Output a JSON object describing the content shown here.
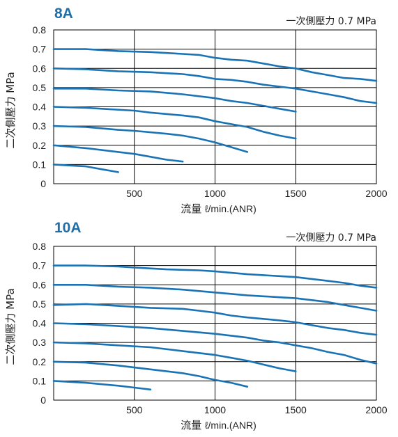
{
  "chart_data": [
    {
      "type": "line",
      "title": "8A",
      "annotation": "一次側壓力 0.7 MPa",
      "ylabel": "二次側壓力  MPa",
      "xlabel_prefix": "流量",
      "xlabel_unit": "ℓ/min.(ANR)",
      "xlim": [
        0,
        2000
      ],
      "ylim": [
        0,
        0.8
      ],
      "x_ticks": [
        "500",
        "1000",
        "1500",
        "2000"
      ],
      "y_ticks": [
        "0",
        "0.1",
        "0.2",
        "0.3",
        "0.4",
        "0.5",
        "0.6",
        "0.7",
        "0.8"
      ],
      "x_grid": [
        500,
        1000,
        1500
      ],
      "y_grid": [
        0.1,
        0.2,
        0.3,
        0.4,
        0.5,
        0.6,
        0.7
      ],
      "line_color": "#1a73b5",
      "series": [
        {
          "points": [
            [
              0,
              0.7
            ],
            [
              200,
              0.7
            ],
            [
              400,
              0.69
            ],
            [
              600,
              0.685
            ],
            [
              800,
              0.675
            ],
            [
              900,
              0.67
            ],
            [
              1000,
              0.655
            ],
            [
              1100,
              0.645
            ],
            [
              1200,
              0.64
            ],
            [
              1300,
              0.625
            ],
            [
              1400,
              0.61
            ],
            [
              1500,
              0.6
            ],
            [
              1600,
              0.58
            ],
            [
              1700,
              0.565
            ],
            [
              1800,
              0.55
            ],
            [
              1900,
              0.545
            ],
            [
              2000,
              0.535
            ]
          ]
        },
        {
          "points": [
            [
              0,
              0.6
            ],
            [
              200,
              0.595
            ],
            [
              400,
              0.585
            ],
            [
              600,
              0.58
            ],
            [
              700,
              0.575
            ],
            [
              800,
              0.57
            ],
            [
              900,
              0.56
            ],
            [
              1000,
              0.545
            ],
            [
              1100,
              0.54
            ],
            [
              1200,
              0.53
            ],
            [
              1300,
              0.515
            ],
            [
              1400,
              0.505
            ],
            [
              1500,
              0.495
            ],
            [
              1600,
              0.48
            ],
            [
              1700,
              0.465
            ],
            [
              1800,
              0.45
            ],
            [
              1900,
              0.43
            ],
            [
              2000,
              0.42
            ]
          ]
        },
        {
          "points": [
            [
              0,
              0.495
            ],
            [
              200,
              0.495
            ],
            [
              400,
              0.485
            ],
            [
              600,
              0.48
            ],
            [
              800,
              0.465
            ],
            [
              1000,
              0.445
            ],
            [
              1100,
              0.43
            ],
            [
              1200,
              0.42
            ],
            [
              1300,
              0.405
            ],
            [
              1400,
              0.39
            ],
            [
              1500,
              0.375
            ]
          ]
        },
        {
          "points": [
            [
              0,
              0.4
            ],
            [
              200,
              0.395
            ],
            [
              300,
              0.39
            ],
            [
              500,
              0.38
            ],
            [
              600,
              0.37
            ],
            [
              800,
              0.355
            ],
            [
              900,
              0.345
            ],
            [
              1000,
              0.325
            ],
            [
              1100,
              0.31
            ],
            [
              1200,
              0.295
            ],
            [
              1300,
              0.27
            ],
            [
              1400,
              0.25
            ],
            [
              1500,
              0.235
            ]
          ]
        },
        {
          "points": [
            [
              0,
              0.3
            ],
            [
              200,
              0.295
            ],
            [
              400,
              0.28
            ],
            [
              500,
              0.275
            ],
            [
              700,
              0.26
            ],
            [
              800,
              0.25
            ],
            [
              900,
              0.235
            ],
            [
              1000,
              0.215
            ],
            [
              1100,
              0.19
            ],
            [
              1200,
              0.165
            ]
          ]
        },
        {
          "points": [
            [
              0,
              0.2
            ],
            [
              200,
              0.185
            ],
            [
              400,
              0.165
            ],
            [
              500,
              0.155
            ],
            [
              600,
              0.14
            ],
            [
              700,
              0.125
            ],
            [
              800,
              0.115
            ]
          ]
        },
        {
          "points": [
            [
              0,
              0.1
            ],
            [
              100,
              0.095
            ],
            [
              200,
              0.09
            ],
            [
              300,
              0.075
            ],
            [
              400,
              0.06
            ]
          ]
        }
      ]
    },
    {
      "type": "line",
      "title": "10A",
      "annotation": "一次側壓力 0.7 MPa",
      "ylabel": "二次側壓力  MPa",
      "xlabel_prefix": "流量",
      "xlabel_unit": "ℓ/min.(ANR)",
      "xlim": [
        0,
        2000
      ],
      "ylim": [
        0,
        0.8
      ],
      "x_ticks": [
        "500",
        "1000",
        "1500",
        "2000"
      ],
      "y_ticks": [
        "0",
        "0.1",
        "0.2",
        "0.3",
        "0.4",
        "0.5",
        "0.6",
        "0.7",
        "0.8"
      ],
      "x_grid": [
        500,
        1000,
        1500
      ],
      "y_grid": [
        0.1,
        0.2,
        0.3,
        0.4,
        0.5,
        0.6,
        0.7
      ],
      "line_color": "#1a73b5",
      "series": [
        {
          "points": [
            [
              0,
              0.7
            ],
            [
              200,
              0.7
            ],
            [
              400,
              0.695
            ],
            [
              500,
              0.69
            ],
            [
              700,
              0.68
            ],
            [
              900,
              0.675
            ],
            [
              1000,
              0.67
            ],
            [
              1200,
              0.655
            ],
            [
              1400,
              0.645
            ],
            [
              1500,
              0.64
            ],
            [
              1700,
              0.62
            ],
            [
              1800,
              0.61
            ],
            [
              1900,
              0.595
            ],
            [
              2000,
              0.585
            ]
          ]
        },
        {
          "points": [
            [
              0,
              0.6
            ],
            [
              200,
              0.6
            ],
            [
              400,
              0.59
            ],
            [
              600,
              0.585
            ],
            [
              800,
              0.575
            ],
            [
              1000,
              0.56
            ],
            [
              1200,
              0.545
            ],
            [
              1400,
              0.535
            ],
            [
              1500,
              0.53
            ],
            [
              1700,
              0.51
            ],
            [
              1800,
              0.495
            ],
            [
              1900,
              0.48
            ],
            [
              2000,
              0.465
            ]
          ]
        },
        {
          "points": [
            [
              0,
              0.495
            ],
            [
              200,
              0.5
            ],
            [
              400,
              0.49
            ],
            [
              600,
              0.48
            ],
            [
              800,
              0.475
            ],
            [
              900,
              0.465
            ],
            [
              1000,
              0.455
            ],
            [
              1100,
              0.44
            ],
            [
              1200,
              0.43
            ],
            [
              1400,
              0.415
            ],
            [
              1500,
              0.405
            ],
            [
              1600,
              0.39
            ],
            [
              1700,
              0.375
            ],
            [
              1800,
              0.365
            ],
            [
              1900,
              0.35
            ],
            [
              2000,
              0.34
            ]
          ]
        },
        {
          "points": [
            [
              0,
              0.4
            ],
            [
              200,
              0.395
            ],
            [
              400,
              0.385
            ],
            [
              600,
              0.375
            ],
            [
              800,
              0.36
            ],
            [
              1000,
              0.345
            ],
            [
              1200,
              0.325
            ],
            [
              1300,
              0.31
            ],
            [
              1400,
              0.3
            ],
            [
              1500,
              0.285
            ],
            [
              1600,
              0.27
            ],
            [
              1700,
              0.25
            ],
            [
              1800,
              0.235
            ],
            [
              1900,
              0.21
            ],
            [
              2000,
              0.19
            ]
          ]
        },
        {
          "points": [
            [
              0,
              0.3
            ],
            [
              200,
              0.295
            ],
            [
              400,
              0.285
            ],
            [
              600,
              0.275
            ],
            [
              800,
              0.255
            ],
            [
              1000,
              0.235
            ],
            [
              1100,
              0.22
            ],
            [
              1200,
              0.205
            ],
            [
              1300,
              0.185
            ],
            [
              1400,
              0.165
            ],
            [
              1500,
              0.15
            ]
          ]
        },
        {
          "points": [
            [
              0,
              0.2
            ],
            [
              200,
              0.195
            ],
            [
              400,
              0.18
            ],
            [
              600,
              0.16
            ],
            [
              800,
              0.14
            ],
            [
              900,
              0.125
            ],
            [
              1000,
              0.105
            ],
            [
              1100,
              0.09
            ],
            [
              1200,
              0.07
            ]
          ]
        },
        {
          "points": [
            [
              0,
              0.1
            ],
            [
              200,
              0.09
            ],
            [
              400,
              0.075
            ],
            [
              500,
              0.065
            ],
            [
              600,
              0.055
            ]
          ]
        }
      ]
    }
  ]
}
